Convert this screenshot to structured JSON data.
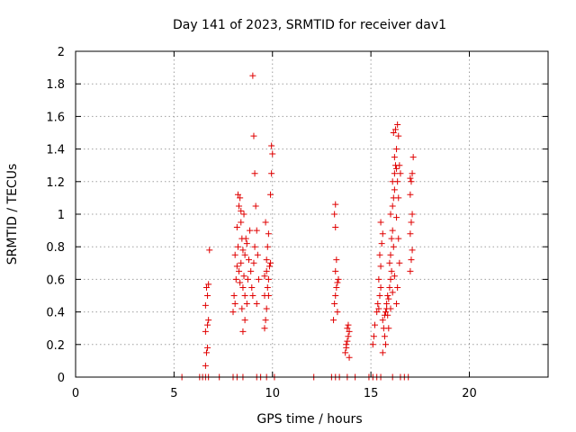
{
  "chart_data": {
    "type": "scatter",
    "title": "Day 141 of 2023, SRMTID for receiver dav1",
    "xlabel": "GPS time / hours",
    "ylabel": "SRMTID / TECUs",
    "xlim": [
      0,
      24
    ],
    "ylim": [
      0,
      2
    ],
    "x_ticks": [
      0,
      5,
      10,
      15,
      20
    ],
    "x_tick_labels": [
      "0",
      "5",
      "10",
      "15",
      "20"
    ],
    "y_ticks": [
      0,
      0.2,
      0.4,
      0.6,
      0.8,
      1,
      1.2,
      1.4,
      1.6,
      1.8,
      2
    ],
    "y_tick_labels": [
      "0",
      "0.2",
      "0.4",
      "0.6",
      "0.8",
      "1",
      "1.2",
      "1.4",
      "1.6",
      "1.8",
      "2"
    ],
    "grid": true,
    "marker": "+",
    "color": "#e00000",
    "series": [
      {
        "name": "SRMTID",
        "points": [
          [
            5.4,
            0
          ],
          [
            6.3,
            0
          ],
          [
            6.45,
            0
          ],
          [
            6.6,
            0
          ],
          [
            6.75,
            0
          ],
          [
            7.3,
            0
          ],
          [
            8.0,
            0
          ],
          [
            8.2,
            0
          ],
          [
            8.5,
            0
          ],
          [
            9.2,
            0
          ],
          [
            9.4,
            0
          ],
          [
            9.7,
            0
          ],
          [
            10.1,
            0
          ],
          [
            12.1,
            0
          ],
          [
            13.0,
            0
          ],
          [
            13.2,
            0
          ],
          [
            13.4,
            0
          ],
          [
            13.8,
            0
          ],
          [
            14.2,
            0
          ],
          [
            14.9,
            0
          ],
          [
            15.1,
            0
          ],
          [
            15.3,
            0
          ],
          [
            15.5,
            0
          ],
          [
            16.1,
            0
          ],
          [
            16.5,
            0
          ],
          [
            16.7,
            0
          ],
          [
            16.9,
            0
          ],
          [
            6.6,
            0.07
          ],
          [
            6.65,
            0.15
          ],
          [
            6.7,
            0.18
          ],
          [
            6.6,
            0.28
          ],
          [
            6.7,
            0.32
          ],
          [
            6.75,
            0.35
          ],
          [
            6.6,
            0.44
          ],
          [
            6.7,
            0.5
          ],
          [
            6.65,
            0.55
          ],
          [
            6.75,
            0.57
          ],
          [
            6.8,
            0.78
          ],
          [
            8.0,
            0.4
          ],
          [
            8.05,
            0.5
          ],
          [
            8.1,
            0.45
          ],
          [
            8.15,
            0.6
          ],
          [
            8.2,
            0.68
          ],
          [
            8.1,
            0.75
          ],
          [
            8.25,
            0.8
          ],
          [
            8.2,
            0.92
          ],
          [
            8.3,
            1.05
          ],
          [
            8.25,
            1.12
          ],
          [
            8.35,
            1.1
          ],
          [
            8.4,
            0.95
          ],
          [
            8.45,
            0.85
          ],
          [
            8.5,
            0.78
          ],
          [
            8.4,
            0.7
          ],
          [
            8.55,
            0.62
          ],
          [
            8.5,
            0.55
          ],
          [
            8.6,
            0.5
          ],
          [
            8.45,
            0.42
          ],
          [
            8.6,
            0.35
          ],
          [
            8.5,
            0.28
          ],
          [
            8.7,
            0.45
          ],
          [
            8.75,
            0.6
          ],
          [
            8.8,
            0.72
          ],
          [
            8.7,
            0.82
          ],
          [
            8.85,
            0.9
          ],
          [
            8.9,
            0.65
          ],
          [
            8.95,
            0.55
          ],
          [
            9.0,
            0.5
          ],
          [
            9.05,
            0.7
          ],
          [
            9.1,
            0.8
          ],
          [
            9.1,
            1.25
          ],
          [
            9.05,
            1.48
          ],
          [
            9.0,
            1.85
          ],
          [
            9.15,
            1.05
          ],
          [
            9.2,
            0.9
          ],
          [
            9.25,
            0.75
          ],
          [
            9.3,
            0.6
          ],
          [
            9.2,
            0.45
          ],
          [
            8.3,
            0.65
          ],
          [
            8.35,
            0.58
          ],
          [
            8.6,
            0.75
          ],
          [
            8.65,
            0.85
          ],
          [
            8.55,
            1.0
          ],
          [
            8.4,
            1.02
          ],
          [
            9.6,
            0.3
          ],
          [
            9.65,
            0.35
          ],
          [
            9.7,
            0.42
          ],
          [
            9.6,
            0.5
          ],
          [
            9.75,
            0.55
          ],
          [
            9.8,
            0.6
          ],
          [
            9.7,
            0.65
          ],
          [
            9.85,
            0.68
          ],
          [
            9.9,
            0.7
          ],
          [
            9.75,
            0.8
          ],
          [
            9.8,
            0.88
          ],
          [
            9.65,
            0.95
          ],
          [
            9.9,
            1.12
          ],
          [
            9.95,
            1.25
          ],
          [
            10.0,
            1.37
          ],
          [
            9.95,
            1.42
          ],
          [
            9.6,
            0.62
          ],
          [
            9.7,
            0.72
          ],
          [
            9.8,
            0.5
          ],
          [
            13.1,
            0.35
          ],
          [
            13.15,
            0.45
          ],
          [
            13.2,
            0.5
          ],
          [
            13.25,
            0.55
          ],
          [
            13.3,
            0.58
          ],
          [
            13.2,
            0.65
          ],
          [
            13.25,
            0.72
          ],
          [
            13.2,
            0.92
          ],
          [
            13.15,
            1.0
          ],
          [
            13.2,
            1.06
          ],
          [
            13.3,
            0.4
          ],
          [
            13.35,
            0.6
          ],
          [
            13.7,
            0.15
          ],
          [
            13.75,
            0.2
          ],
          [
            13.8,
            0.22
          ],
          [
            13.85,
            0.25
          ],
          [
            13.9,
            0.28
          ],
          [
            13.8,
            0.3
          ],
          [
            13.75,
            0.18
          ],
          [
            13.85,
            0.32
          ],
          [
            13.9,
            0.12
          ],
          [
            15.1,
            0.2
          ],
          [
            15.15,
            0.25
          ],
          [
            15.2,
            0.32
          ],
          [
            15.3,
            0.4
          ],
          [
            15.35,
            0.45
          ],
          [
            15.4,
            0.42
          ],
          [
            15.45,
            0.5
          ],
          [
            15.5,
            0.55
          ],
          [
            15.4,
            0.6
          ],
          [
            15.5,
            0.68
          ],
          [
            15.45,
            0.75
          ],
          [
            15.55,
            0.82
          ],
          [
            15.6,
            0.88
          ],
          [
            15.5,
            0.95
          ],
          [
            15.6,
            0.35
          ],
          [
            15.65,
            0.3
          ],
          [
            15.7,
            0.25
          ],
          [
            15.75,
            0.2
          ],
          [
            15.6,
            0.15
          ],
          [
            15.7,
            0.38
          ],
          [
            15.75,
            0.4
          ],
          [
            15.8,
            0.45
          ],
          [
            15.85,
            0.5
          ],
          [
            15.8,
            0.42
          ],
          [
            15.9,
            0.48
          ],
          [
            15.95,
            0.55
          ],
          [
            16.0,
            0.6
          ],
          [
            15.95,
            0.7
          ],
          [
            16.0,
            0.75
          ],
          [
            16.05,
            0.85
          ],
          [
            16.1,
            0.9
          ],
          [
            16.0,
            1.0
          ],
          [
            16.1,
            1.05
          ],
          [
            16.15,
            1.1
          ],
          [
            16.2,
            1.15
          ],
          [
            16.1,
            1.2
          ],
          [
            16.2,
            1.25
          ],
          [
            16.25,
            1.3
          ],
          [
            16.3,
            1.28
          ],
          [
            16.2,
            1.35
          ],
          [
            16.15,
            1.5
          ],
          [
            16.25,
            1.52
          ],
          [
            16.35,
            1.55
          ],
          [
            16.4,
            1.48
          ],
          [
            16.3,
            1.4
          ],
          [
            16.35,
            1.2
          ],
          [
            16.4,
            1.1
          ],
          [
            16.3,
            0.98
          ],
          [
            16.4,
            0.85
          ],
          [
            16.45,
            0.7
          ],
          [
            16.35,
            0.55
          ],
          [
            16.3,
            0.45
          ],
          [
            16.2,
            0.62
          ],
          [
            16.15,
            0.8
          ],
          [
            16.05,
            0.65
          ],
          [
            15.9,
            0.3
          ],
          [
            15.85,
            0.38
          ],
          [
            16.0,
            0.42
          ],
          [
            16.1,
            0.52
          ],
          [
            16.45,
            1.3
          ],
          [
            16.5,
            1.25
          ],
          [
            17.0,
            0.65
          ],
          [
            17.05,
            0.72
          ],
          [
            17.1,
            0.78
          ],
          [
            17.0,
            0.88
          ],
          [
            17.05,
            0.95
          ],
          [
            17.1,
            1.0
          ],
          [
            17.0,
            1.12
          ],
          [
            17.05,
            1.2
          ],
          [
            17.1,
            1.25
          ],
          [
            17.15,
            1.35
          ],
          [
            17.0,
            1.22
          ]
        ]
      }
    ]
  }
}
